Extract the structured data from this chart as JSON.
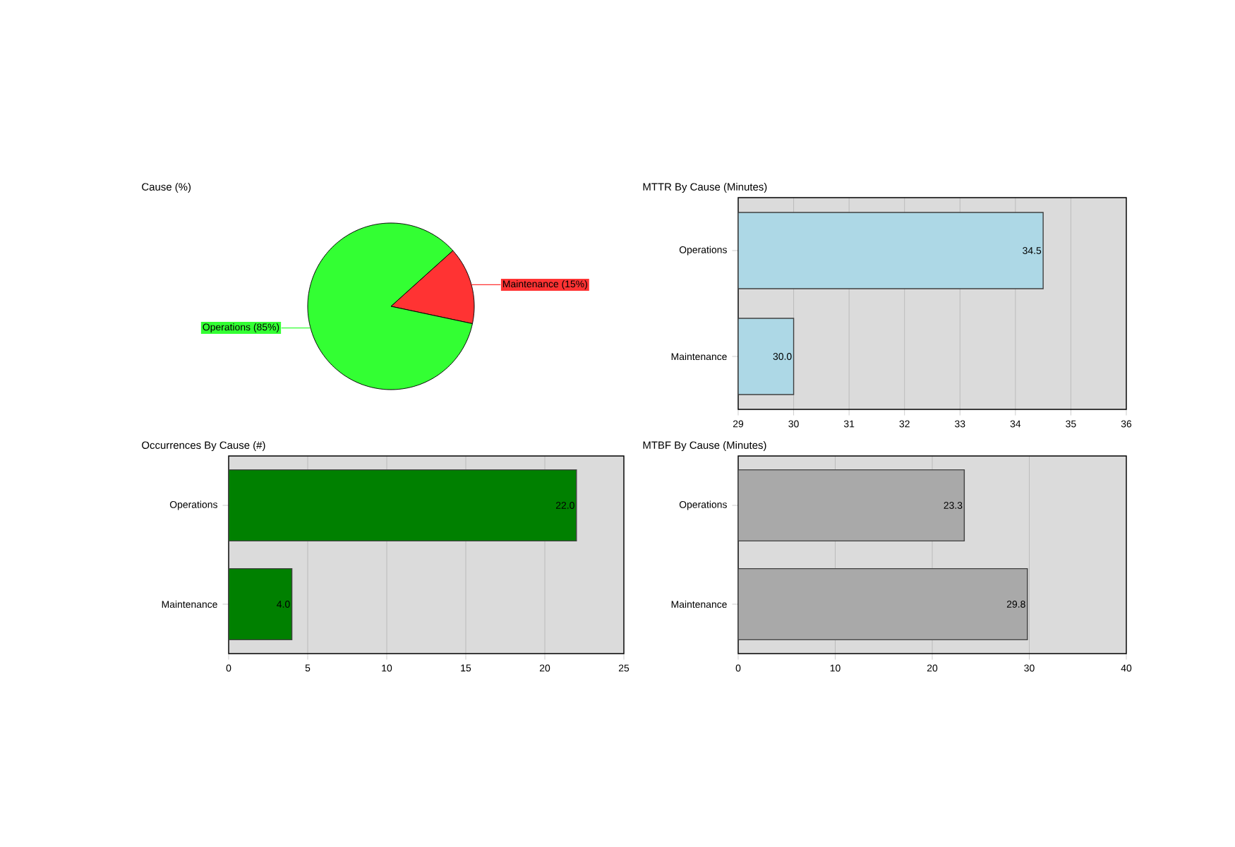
{
  "chart_data": [
    {
      "type": "pie",
      "title": "Cause (%)",
      "categories": [
        "Maintenance (15%)",
        "Operations (85%)"
      ],
      "values": [
        15,
        85
      ],
      "colors": [
        "#ff3333",
        "#33ff33"
      ]
    },
    {
      "type": "bar",
      "orientation": "horizontal",
      "title": "MTTR By Cause (Minutes)",
      "categories": [
        "Operations",
        "Maintenance"
      ],
      "values": [
        34.5,
        30.0
      ],
      "value_labels": [
        "34.5",
        "30.0"
      ],
      "color": "#add8e6",
      "xlim": [
        29,
        36
      ],
      "xticks": [
        29,
        30,
        31,
        32,
        33,
        34,
        35,
        36
      ],
      "grid": "x"
    },
    {
      "type": "bar",
      "orientation": "horizontal",
      "title": "Occurrences By Cause (#)",
      "categories": [
        "Operations",
        "Maintenance"
      ],
      "values": [
        22.0,
        4.0
      ],
      "value_labels": [
        "22.0",
        "4.0"
      ],
      "color": "#008000",
      "xlim": [
        0,
        25
      ],
      "xticks": [
        0,
        5,
        10,
        15,
        20,
        25
      ],
      "grid": "x"
    },
    {
      "type": "bar",
      "orientation": "horizontal",
      "title": "MTBF By Cause (Minutes)",
      "categories": [
        "Operations",
        "Maintenance"
      ],
      "values": [
        23.3,
        29.8
      ],
      "value_labels": [
        "23.3",
        "29.8"
      ],
      "color": "#a9a9a9",
      "xlim": [
        0,
        40
      ],
      "xticks": [
        0,
        10,
        20,
        30,
        40
      ],
      "grid": "x"
    }
  ]
}
